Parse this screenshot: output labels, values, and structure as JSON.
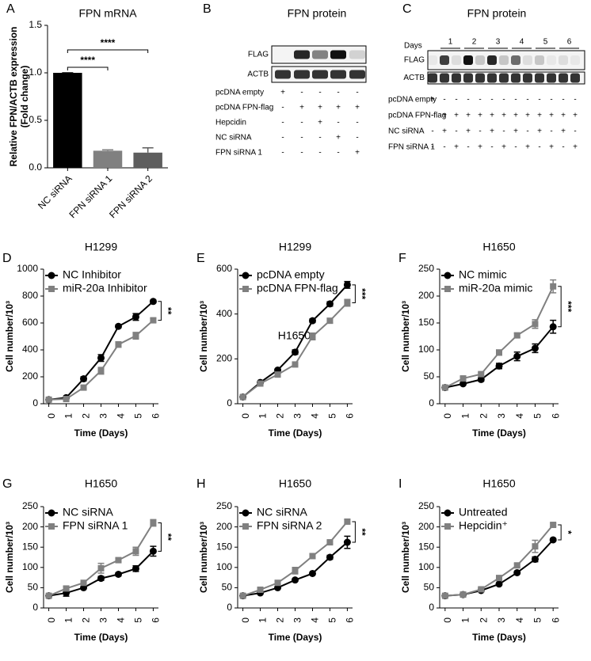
{
  "chart_data": [
    {
      "type": "bar",
      "panel_label": "A",
      "title": "FPN mRNA",
      "ylabel": [
        "Relative FPN/ACTB expression",
        "(Fold change)"
      ],
      "categories": [
        "NC siRNA",
        "FPN siRNA 1",
        "FPN siRNA 2"
      ],
      "values": [
        1.0,
        0.18,
        0.16
      ],
      "errors": [
        0,
        0.01,
        0.05
      ],
      "colors": [
        "#000000",
        "#808080",
        "#5e5e5e"
      ],
      "ylim": [
        0,
        1.5
      ],
      "yticks": [
        {
          "value": 0,
          "label": "0.0"
        },
        {
          "value": 0.5,
          "label": "0.5"
        },
        {
          "value": 1,
          "label": "1.0"
        },
        {
          "value": 1.5,
          "label": "1.5"
        }
      ],
      "brackets": [
        {
          "label": "****",
          "from": 0,
          "to": 1
        },
        {
          "label": "****",
          "from": 0,
          "to": 2
        }
      ]
    },
    {
      "type": "line",
      "panel_label": "D",
      "title": "H1299",
      "ylabel": "Cell number/10³",
      "xlabel": "Time (Days)",
      "x": [
        0,
        1,
        2,
        3,
        4,
        5,
        6
      ],
      "xlim": [
        -0.3,
        6.3
      ],
      "xticks": [
        0,
        1,
        2,
        3,
        4,
        5,
        6
      ],
      "ylim": [
        0,
        1000
      ],
      "yticks": [
        0,
        200,
        400,
        600,
        800,
        1000
      ],
      "significance": "**",
      "series": [
        {
          "name": "NC Inhibitor",
          "color": "#000000",
          "marker": "circle",
          "values": [
            30,
            45,
            185,
            340,
            575,
            645,
            760
          ],
          "errors": [
            5,
            10,
            15,
            25,
            10,
            25,
            10
          ]
        },
        {
          "name": "miR-20a Inhibitor",
          "color": "#808080",
          "marker": "square",
          "values": [
            30,
            35,
            120,
            245,
            440,
            505,
            620
          ],
          "errors": [
            5,
            5,
            15,
            25,
            20,
            25,
            15
          ]
        }
      ]
    },
    {
      "type": "line",
      "panel_label": "E",
      "title": "H1299",
      "annotation": "H1650",
      "ylabel": "Cell number/10³",
      "xlabel": "Time (Days)",
      "x": [
        0,
        1,
        2,
        3,
        4,
        5,
        6
      ],
      "xlim": [
        -0.3,
        6.3
      ],
      "xticks": [
        0,
        1,
        2,
        3,
        4,
        5,
        6
      ],
      "ylim": [
        0,
        600
      ],
      "yticks": [
        0,
        200,
        400,
        600
      ],
      "significance": "***",
      "series": [
        {
          "name": "pcDNA empty",
          "color": "#000000",
          "marker": "circle",
          "values": [
            30,
            95,
            150,
            230,
            370,
            445,
            530
          ],
          "errors": [
            5,
            5,
            5,
            10,
            8,
            10,
            15
          ]
        },
        {
          "name": "pcDNA FPN-flag",
          "color": "#808080",
          "marker": "square",
          "values": [
            30,
            90,
            130,
            175,
            300,
            370,
            450
          ],
          "errors": [
            5,
            5,
            5,
            8,
            15,
            10,
            15
          ]
        }
      ]
    },
    {
      "type": "line",
      "panel_label": "F",
      "title": "H1650",
      "ylabel": "Cell number/10³",
      "xlabel": "Time (Days)",
      "x": [
        0,
        1,
        2,
        3,
        4,
        5,
        6
      ],
      "xlim": [
        -0.3,
        6.3
      ],
      "xticks": [
        0,
        1,
        2,
        3,
        4,
        5,
        6
      ],
      "ylim": [
        0,
        250
      ],
      "yticks": [
        0,
        50,
        100,
        150,
        200,
        250
      ],
      "significance": "***",
      "series": [
        {
          "name": "NC mimic",
          "color": "#000000",
          "marker": "circle",
          "values": [
            30,
            37,
            45,
            70,
            88,
            103,
            143
          ],
          "errors": [
            2,
            2,
            3,
            5,
            8,
            8,
            12
          ]
        },
        {
          "name": "miR-20a mimic",
          "color": "#808080",
          "marker": "square",
          "values": [
            30,
            47,
            55,
            95,
            127,
            148,
            218
          ],
          "errors": [
            2,
            3,
            3,
            5,
            4,
            8,
            12
          ]
        }
      ]
    },
    {
      "type": "line",
      "panel_label": "G",
      "title": "H1650",
      "ylabel": "Cell number/10³",
      "xlabel": "Time (Days)",
      "x": [
        0,
        1,
        2,
        3,
        4,
        5,
        6
      ],
      "xlim": [
        -0.3,
        6.3
      ],
      "xticks": [
        0,
        1,
        2,
        3,
        4,
        5,
        6
      ],
      "ylim": [
        0,
        250
      ],
      "yticks": [
        0,
        50,
        100,
        150,
        200,
        250
      ],
      "significance": "**",
      "series": [
        {
          "name": "NC siRNA",
          "color": "#000000",
          "marker": "circle",
          "values": [
            30,
            37,
            50,
            73,
            83,
            97,
            140
          ],
          "errors": [
            2,
            8,
            3,
            5,
            4,
            7,
            12
          ]
        },
        {
          "name": "FPN siRNA 1",
          "color": "#808080",
          "marker": "square",
          "values": [
            30,
            48,
            62,
            98,
            118,
            140,
            210
          ],
          "errors": [
            2,
            5,
            3,
            12,
            4,
            10,
            8
          ]
        }
      ]
    },
    {
      "type": "line",
      "panel_label": "H",
      "title": "H1650",
      "ylabel": "Cell number/10³",
      "xlabel": "Time (Days)",
      "x": [
        0,
        1,
        2,
        3,
        4,
        5,
        6
      ],
      "xlim": [
        -0.3,
        6.3
      ],
      "xticks": [
        0,
        1,
        2,
        3,
        4,
        5,
        6
      ],
      "ylim": [
        0,
        250
      ],
      "yticks": [
        0,
        50,
        100,
        150,
        200,
        250
      ],
      "significance": "**",
      "series": [
        {
          "name": "NC siRNA",
          "color": "#000000",
          "marker": "circle",
          "values": [
            30,
            37,
            50,
            69,
            85,
            125,
            162
          ],
          "errors": [
            2,
            3,
            3,
            3,
            3,
            5,
            15
          ]
        },
        {
          "name": "FPN siRNA 2",
          "color": "#808080",
          "marker": "square",
          "values": [
            30,
            45,
            62,
            92,
            128,
            162,
            213
          ],
          "errors": [
            2,
            4,
            4,
            8,
            6,
            3,
            5
          ]
        }
      ]
    },
    {
      "type": "line",
      "panel_label": "I",
      "title": "H1650",
      "ylabel": "Cell number/10³",
      "xlabel": "Time (Days)",
      "x": [
        0,
        1,
        2,
        3,
        4,
        5,
        6
      ],
      "xlim": [
        -0.3,
        6.3
      ],
      "xticks": [
        0,
        1,
        2,
        3,
        4,
        5,
        6
      ],
      "ylim": [
        0,
        250
      ],
      "yticks": [
        0,
        50,
        100,
        150,
        200,
        250
      ],
      "significance": "*",
      "series": [
        {
          "name": "Untreated",
          "color": "#000000",
          "marker": "circle",
          "values": [
            30,
            33,
            43,
            59,
            87,
            120,
            168
          ],
          "errors": [
            2,
            3,
            3,
            3,
            3,
            6,
            3
          ]
        },
        {
          "name": "Hepcidin⁺",
          "color": "#808080",
          "marker": "square",
          "values": [
            30,
            33,
            46,
            74,
            105,
            152,
            205
          ],
          "errors": [
            2,
            3,
            3,
            5,
            4,
            15,
            4
          ]
        }
      ]
    }
  ],
  "blot_b": {
    "panel_label": "B",
    "title": "FPN protein",
    "bands": [
      "FLAG",
      "ACTB"
    ],
    "conditions": [
      {
        "name": "pcDNA empty",
        "lanes": [
          "+",
          "-",
          "-",
          "-",
          "-"
        ]
      },
      {
        "name": "pcDNA FPN-flag",
        "lanes": [
          "-",
          "+",
          "+",
          "+",
          "+"
        ]
      },
      {
        "name": "Hepcidin",
        "lanes": [
          "-",
          "-",
          "+",
          "-",
          "-"
        ]
      },
      {
        "name": "NC siRNA",
        "lanes": [
          "-",
          "-",
          "-",
          "+",
          "-"
        ]
      },
      {
        "name": "FPN siRNA 1",
        "lanes": [
          "-",
          "-",
          "-",
          "-",
          "+"
        ]
      }
    ]
  },
  "blot_c": {
    "panel_label": "C",
    "title": "FPN protein",
    "days_label": "Days",
    "days": [
      "1",
      "2",
      "3",
      "4",
      "5",
      "6"
    ],
    "bands": [
      "FLAG",
      "ACTB"
    ],
    "conditions": [
      {
        "name": "pcDNA empty",
        "lanes": [
          "+",
          "-",
          "-",
          "-",
          "-",
          "-",
          "-",
          "-",
          "-",
          "-",
          "-",
          "-",
          "-"
        ]
      },
      {
        "name": "pcDNA FPN-flag",
        "lanes": [
          "-",
          "+",
          "+",
          "+",
          "+",
          "+",
          "+",
          "+",
          "+",
          "+",
          "+",
          "+",
          "+"
        ]
      },
      {
        "name": "NC siRNA",
        "lanes": [
          "-",
          "+",
          "-",
          "+",
          "-",
          "+",
          "-",
          "+",
          "-",
          "+",
          "-",
          "+",
          "-"
        ]
      },
      {
        "name": "FPN siRNA 1",
        "lanes": [
          "-",
          "-",
          "+",
          "-",
          "+",
          "-",
          "+",
          "-",
          "+",
          "-",
          "+",
          "-",
          "+"
        ]
      }
    ]
  }
}
